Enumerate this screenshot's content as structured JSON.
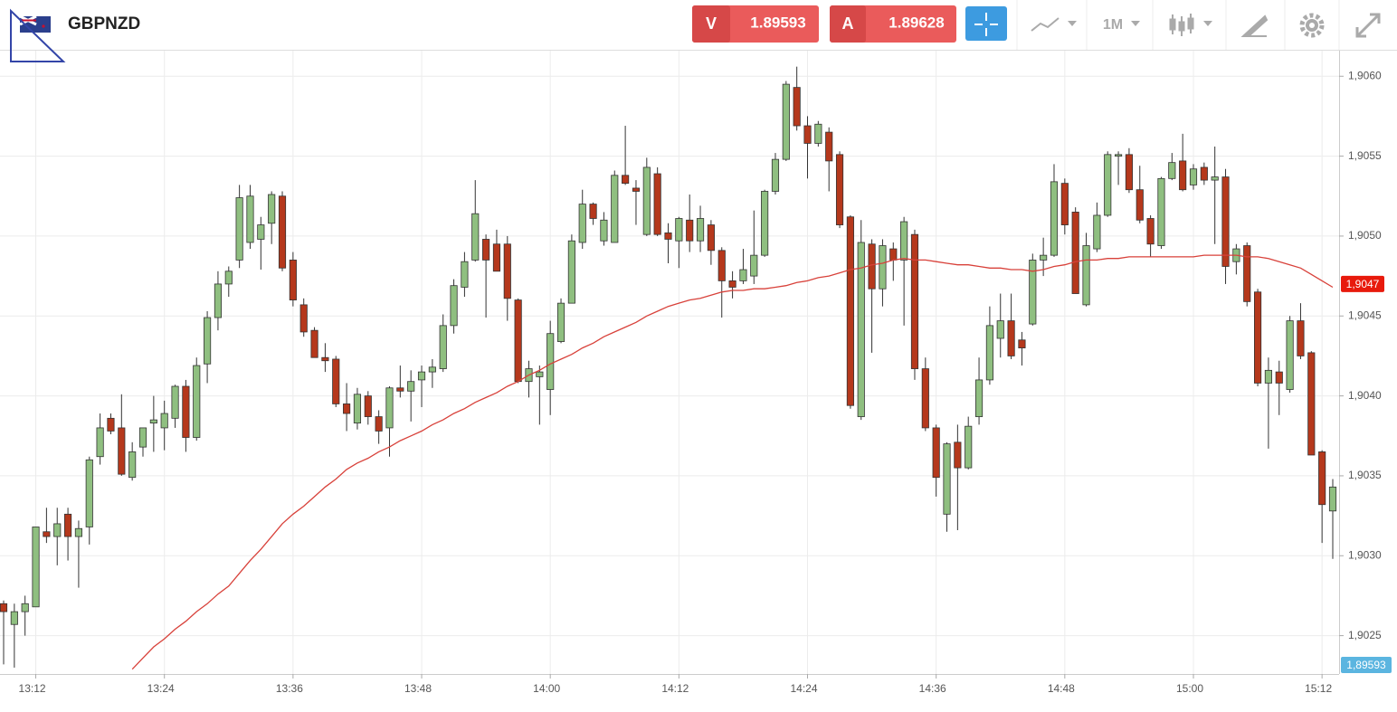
{
  "toolbar": {
    "sell_label": "V",
    "sell_price": 1.89593,
    "buy_label": "A",
    "buy_price": 1.89628,
    "timeframe": "1M"
  },
  "chart_data": {
    "type": "candlestick",
    "title": "GBPNZD",
    "up_color": "#8fbf80",
    "down_color": "#b5381c",
    "grid": true,
    "ylim": [
      1.90226,
      1.90616
    ],
    "yticks": [
      {
        "value": 1.9025,
        "label": "1,9025"
      },
      {
        "value": 1.903,
        "label": "1,9030"
      },
      {
        "value": 1.9035,
        "label": "1,9035"
      },
      {
        "value": 1.904,
        "label": "1,9040"
      },
      {
        "value": 1.9045,
        "label": "1,9045"
      },
      {
        "value": 1.905,
        "label": "1,9050"
      },
      {
        "value": 1.9055,
        "label": "1,9055"
      },
      {
        "value": 1.906,
        "label": "1,9060"
      }
    ],
    "price_tag": {
      "value": 1.9047,
      "label": "1,9047"
    },
    "bottom_tag": {
      "value": 1.89593,
      "label": "1,89593"
    },
    "categories": [
      null,
      null,
      null,
      "13:12",
      null,
      null,
      null,
      null,
      null,
      null,
      null,
      null,
      null,
      null,
      null,
      "13:24",
      null,
      null,
      null,
      null,
      null,
      null,
      null,
      null,
      null,
      null,
      null,
      "13:36",
      null,
      null,
      null,
      null,
      null,
      null,
      null,
      null,
      null,
      null,
      null,
      "13:48",
      null,
      null,
      null,
      null,
      null,
      null,
      null,
      null,
      null,
      null,
      null,
      "14:00",
      null,
      null,
      null,
      null,
      null,
      null,
      null,
      null,
      null,
      null,
      null,
      "14:12",
      null,
      null,
      null,
      null,
      null,
      null,
      null,
      null,
      null,
      null,
      null,
      "14:24",
      null,
      null,
      null,
      null,
      null,
      null,
      null,
      null,
      null,
      null,
      null,
      "14:36",
      null,
      null,
      null,
      null,
      null,
      null,
      null,
      null,
      null,
      null,
      null,
      "14:48",
      null,
      null,
      null,
      null,
      null,
      null,
      null,
      null,
      null,
      null,
      null,
      "15:00",
      null,
      null,
      null,
      null,
      null,
      null,
      null,
      null,
      null,
      null,
      null,
      "15:12",
      null
    ],
    "candles": [
      [
        1.9027,
        1.90272,
        1.90232,
        1.90265
      ],
      [
        1.90257,
        1.9027,
        1.9023,
        1.90265
      ],
      [
        1.90265,
        1.90275,
        1.9025,
        1.9027
      ],
      [
        1.90268,
        1.90318,
        1.90268,
        1.90318
      ],
      [
        1.90315,
        1.9033,
        1.90308,
        1.90312
      ],
      [
        1.90312,
        1.9033,
        1.90294,
        1.9032
      ],
      [
        1.90326,
        1.9033,
        1.90297,
        1.90312
      ],
      [
        1.90312,
        1.90322,
        1.9028,
        1.90317
      ],
      [
        1.90318,
        1.90362,
        1.90307,
        1.9036
      ],
      [
        1.90362,
        1.90389,
        1.90357,
        1.9038
      ],
      [
        1.90386,
        1.90389,
        1.90376,
        1.90378
      ],
      [
        1.9038,
        1.90401,
        1.9035,
        1.90351
      ],
      [
        1.90349,
        1.90371,
        1.90347,
        1.90365
      ],
      [
        1.90368,
        1.9038,
        1.90362,
        1.9038
      ],
      [
        1.90383,
        1.904,
        1.90365,
        1.90385
      ],
      [
        1.9038,
        1.90397,
        1.90366,
        1.90389
      ],
      [
        1.90386,
        1.90407,
        1.9038,
        1.90406
      ],
      [
        1.90406,
        1.9041,
        1.90365,
        1.90374
      ],
      [
        1.90374,
        1.90424,
        1.90372,
        1.90419
      ],
      [
        1.9042,
        1.90453,
        1.90408,
        1.90449
      ],
      [
        1.90449,
        1.90478,
        1.90441,
        1.9047
      ],
      [
        1.9047,
        1.90481,
        1.90462,
        1.90478
      ],
      [
        1.90485,
        1.90532,
        1.9048,
        1.90524
      ],
      [
        1.90496,
        1.90532,
        1.90492,
        1.90525
      ],
      [
        1.90498,
        1.90512,
        1.90479,
        1.90507
      ],
      [
        1.90508,
        1.90528,
        1.90495,
        1.90526
      ],
      [
        1.90525,
        1.90528,
        1.90478,
        1.9048
      ],
      [
        1.90485,
        1.9049,
        1.90456,
        1.9046
      ],
      [
        1.90457,
        1.90461,
        1.90437,
        1.9044
      ],
      [
        1.90441,
        1.90443,
        1.90424,
        1.90424
      ],
      [
        1.90424,
        1.90433,
        1.90415,
        1.90422
      ],
      [
        1.90423,
        1.90425,
        1.90393,
        1.90395
      ],
      [
        1.90395,
        1.90408,
        1.90378,
        1.90389
      ],
      [
        1.90383,
        1.90405,
        1.90379,
        1.90401
      ],
      [
        1.904,
        1.90403,
        1.90382,
        1.90387
      ],
      [
        1.90387,
        1.90391,
        1.9037,
        1.90378
      ],
      [
        1.9038,
        1.90406,
        1.90362,
        1.90405
      ],
      [
        1.90405,
        1.90419,
        1.90399,
        1.90403
      ],
      [
        1.90403,
        1.90416,
        1.90384,
        1.90409
      ],
      [
        1.9041,
        1.90419,
        1.90393,
        1.90415
      ],
      [
        1.90415,
        1.90423,
        1.90405,
        1.90418
      ],
      [
        1.90417,
        1.90451,
        1.90415,
        1.90444
      ],
      [
        1.90444,
        1.90473,
        1.90439,
        1.90469
      ],
      [
        1.90468,
        1.9049,
        1.90462,
        1.90484
      ],
      [
        1.90485,
        1.90535,
        1.90484,
        1.90514
      ],
      [
        1.90498,
        1.90501,
        1.90449,
        1.90485
      ],
      [
        1.90495,
        1.90504,
        1.90478,
        1.90478
      ],
      [
        1.90495,
        1.905,
        1.90447,
        1.90461
      ],
      [
        1.9046,
        1.90461,
        1.90408,
        1.90409
      ],
      [
        1.90409,
        1.90422,
        1.90399,
        1.90417
      ],
      [
        1.90412,
        1.90419,
        1.90382,
        1.90415
      ],
      [
        1.90404,
        1.90447,
        1.90388,
        1.90439
      ],
      [
        1.90434,
        1.90461,
        1.90433,
        1.90458
      ],
      [
        1.90458,
        1.90501,
        1.90458,
        1.90497
      ],
      [
        1.90496,
        1.90529,
        1.90492,
        1.9052
      ],
      [
        1.9052,
        1.90521,
        1.90507,
        1.90511
      ],
      [
        1.90497,
        1.90515,
        1.90494,
        1.9051
      ],
      [
        1.90496,
        1.90541,
        1.90496,
        1.90538
      ],
      [
        1.90538,
        1.90569,
        1.90532,
        1.90533
      ],
      [
        1.9053,
        1.90535,
        1.90507,
        1.90528
      ],
      [
        1.90501,
        1.90549,
        1.905,
        1.90543
      ],
      [
        1.90539,
        1.90543,
        1.905,
        1.90501
      ],
      [
        1.90502,
        1.90508,
        1.90483,
        1.90498
      ],
      [
        1.90497,
        1.90512,
        1.9048,
        1.90511
      ],
      [
        1.9051,
        1.90526,
        1.9049,
        1.90497
      ],
      [
        1.90497,
        1.90519,
        1.9049,
        1.90511
      ],
      [
        1.90507,
        1.9051,
        1.90482,
        1.90491
      ],
      [
        1.90491,
        1.90493,
        1.90449,
        1.90472
      ],
      [
        1.90472,
        1.90478,
        1.90461,
        1.90468
      ],
      [
        1.90472,
        1.90492,
        1.9047,
        1.90479
      ],
      [
        1.90475,
        1.90516,
        1.9047,
        1.90488
      ],
      [
        1.90488,
        1.90529,
        1.90487,
        1.90528
      ],
      [
        1.90528,
        1.90552,
        1.90526,
        1.90548
      ],
      [
        1.90548,
        1.90597,
        1.90547,
        1.90595
      ],
      [
        1.90593,
        1.90606,
        1.90566,
        1.90569
      ],
      [
        1.90569,
        1.90575,
        1.90536,
        1.90558
      ],
      [
        1.90558,
        1.90572,
        1.90556,
        1.9057
      ],
      [
        1.90565,
        1.90568,
        1.90528,
        1.90547
      ],
      [
        1.90551,
        1.90553,
        1.90505,
        1.90507
      ],
      [
        1.90512,
        1.90513,
        1.90392,
        1.90394
      ],
      [
        1.90387,
        1.9051,
        1.90385,
        1.90496
      ],
      [
        1.90495,
        1.90498,
        1.90427,
        1.90467
      ],
      [
        1.90467,
        1.90498,
        1.90456,
        1.90494
      ],
      [
        1.90492,
        1.90496,
        1.90472,
        1.90485
      ],
      [
        1.90485,
        1.90512,
        1.90444,
        1.90509
      ],
      [
        1.90501,
        1.90504,
        1.9041,
        1.90417
      ],
      [
        1.90417,
        1.90424,
        1.90378,
        1.9038
      ],
      [
        1.9038,
        1.90382,
        1.90337,
        1.90349
      ],
      [
        1.90326,
        1.90371,
        1.90315,
        1.9037
      ],
      [
        1.90371,
        1.90382,
        1.90316,
        1.90355
      ],
      [
        1.90355,
        1.90387,
        1.90354,
        1.90381
      ],
      [
        1.90387,
        1.90424,
        1.90382,
        1.9041
      ],
      [
        1.9041,
        1.90456,
        1.90407,
        1.90444
      ],
      [
        1.90436,
        1.90464,
        1.90424,
        1.90447
      ],
      [
        1.90447,
        1.90464,
        1.90423,
        1.90425
      ],
      [
        1.90435,
        1.9044,
        1.90419,
        1.9043
      ],
      [
        1.90445,
        1.90489,
        1.90444,
        1.90485
      ],
      [
        1.90485,
        1.90499,
        1.90475,
        1.90488
      ],
      [
        1.90488,
        1.90545,
        1.90487,
        1.90534
      ],
      [
        1.90533,
        1.90536,
        1.90501,
        1.90507
      ],
      [
        1.90515,
        1.90518,
        1.90464,
        1.90464
      ],
      [
        1.90457,
        1.90502,
        1.90456,
        1.90494
      ],
      [
        1.90492,
        1.90521,
        1.9049,
        1.90513
      ],
      [
        1.90513,
        1.90553,
        1.90512,
        1.90551
      ],
      [
        1.9055,
        1.90553,
        1.90532,
        1.90551
      ],
      [
        1.90551,
        1.90555,
        1.90527,
        1.90529
      ],
      [
        1.90529,
        1.90544,
        1.90508,
        1.9051
      ],
      [
        1.90511,
        1.90513,
        1.90487,
        1.90495
      ],
      [
        1.90494,
        1.90537,
        1.90492,
        1.90536
      ],
      [
        1.90536,
        1.90552,
        1.90535,
        1.90546
      ],
      [
        1.90547,
        1.90564,
        1.90528,
        1.90529
      ],
      [
        1.90532,
        1.90545,
        1.90529,
        1.90542
      ],
      [
        1.90543,
        1.90546,
        1.90532,
        1.90535
      ],
      [
        1.90535,
        1.90556,
        1.90495,
        1.90537
      ],
      [
        1.90537,
        1.90542,
        1.9047,
        1.90481
      ],
      [
        1.90484,
        1.90495,
        1.90476,
        1.90492
      ],
      [
        1.90494,
        1.90496,
        1.90456,
        1.90459
      ],
      [
        1.90465,
        1.90467,
        1.90406,
        1.90408
      ],
      [
        1.90408,
        1.90424,
        1.90367,
        1.90416
      ],
      [
        1.90415,
        1.90422,
        1.90388,
        1.90408
      ],
      [
        1.90404,
        1.9045,
        1.90402,
        1.90447
      ],
      [
        1.90447,
        1.90458,
        1.90423,
        1.90425
      ],
      [
        1.90427,
        1.90428,
        1.90363,
        1.90363
      ],
      [
        1.90365,
        1.90366,
        1.90308,
        1.90332
      ],
      [
        1.90328,
        1.90348,
        1.90298,
        1.90343
      ]
    ],
    "series": [
      {
        "color": "#d8413a",
        "values": [
          null,
          null,
          null,
          null,
          null,
          null,
          null,
          null,
          null,
          null,
          null,
          null,
          1.90229,
          1.90236,
          1.90243,
          1.90248,
          1.90254,
          1.90259,
          1.90265,
          1.9027,
          1.90276,
          1.90281,
          1.90289,
          1.90297,
          1.90304,
          1.90312,
          1.9032,
          1.90326,
          1.90331,
          1.90337,
          1.90343,
          1.90348,
          1.90354,
          1.90358,
          1.90361,
          1.90365,
          1.90368,
          1.90372,
          1.90375,
          1.90378,
          1.90382,
          1.90385,
          1.90389,
          1.90392,
          1.90396,
          1.90399,
          1.90402,
          1.90406,
          1.90409,
          1.90413,
          1.90416,
          1.9042,
          1.90423,
          1.90426,
          1.9043,
          1.90433,
          1.90437,
          1.9044,
          1.90443,
          1.90446,
          1.9045,
          1.90453,
          1.90456,
          1.90458,
          1.9046,
          1.90461,
          1.90463,
          1.90465,
          1.90466,
          1.90466,
          1.90467,
          1.90467,
          1.90468,
          1.90469,
          1.90471,
          1.90472,
          1.90474,
          1.90475,
          1.90477,
          1.90479,
          1.9048,
          1.90482,
          1.90483,
          1.90485,
          1.90486,
          1.90485,
          1.90485,
          1.90484,
          1.90483,
          1.90482,
          1.90482,
          1.90481,
          1.9048,
          1.9048,
          1.90479,
          1.90479,
          1.90478,
          1.90479,
          1.90481,
          1.90482,
          1.90484,
          1.90485,
          1.90485,
          1.90486,
          1.90486,
          1.90487,
          1.90487,
          1.90487,
          1.90487,
          1.90487,
          1.90487,
          1.90487,
          1.90488,
          1.90488,
          1.90488,
          1.90488,
          1.90487,
          1.90487,
          1.90486,
          1.90484,
          1.90482,
          1.9048,
          1.90476,
          1.90472,
          1.90468
        ]
      }
    ]
  }
}
